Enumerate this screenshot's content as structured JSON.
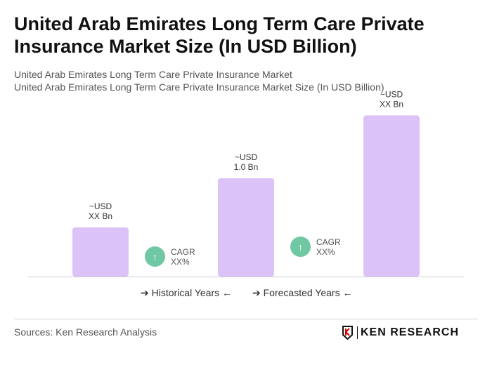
{
  "title": "United Arab Emirates Long Term Care Private Insurance Market Size (In USD Billion)",
  "subtitle1": "United Arab Emirates Long Term Care Private Insurance Market",
  "subtitle2": "United Arab Emirates Long Term Care Private Insurance Market Size (In USD Billion)",
  "chart_data": {
    "type": "bar",
    "categories": [
      "",
      "",
      ""
    ],
    "values": [
      0.5,
      1.0,
      1.64
    ],
    "data_labels": [
      [
        "~USD",
        "XX Bn"
      ],
      [
        "~USD",
        "1.0 Bn"
      ],
      [
        "~USD",
        "XX Bn"
      ]
    ],
    "bar_color": "#dcc3f7",
    "grid": false
  },
  "cagr": [
    {
      "label": "CAGR",
      "value": "XX%"
    },
    {
      "label": "CAGR",
      "value": "XX%"
    }
  ],
  "cagr_color": "#6fc7a4",
  "legend": {
    "historical": "Historical Years",
    "forecasted": "Forecasted Years"
  },
  "source": "Sources: Ken Research Analysis",
  "logo": "KEN RESEARCH"
}
